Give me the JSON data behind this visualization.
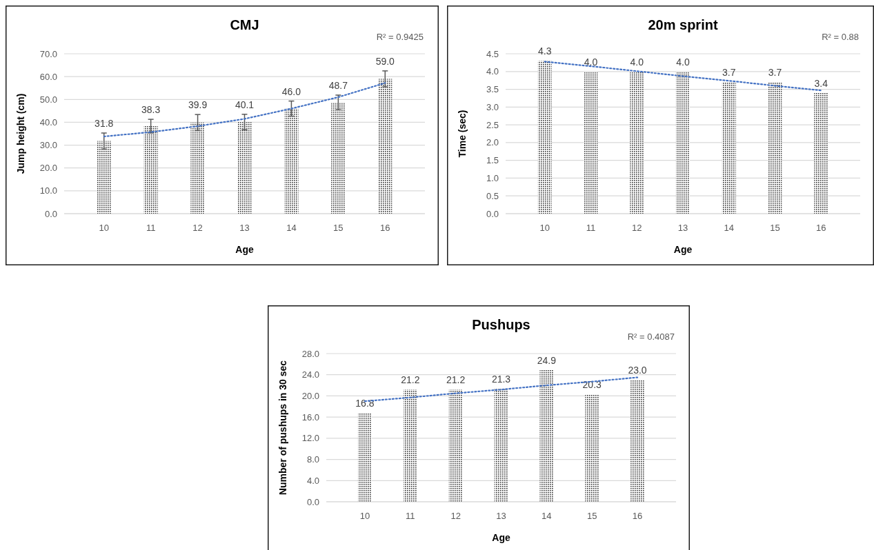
{
  "chart_data": [
    {
      "type": "bar",
      "title": "CMJ",
      "xlabel": "Age",
      "ylabel": "Jump height (cm)",
      "annotations": [
        "R² = 0.9425"
      ],
      "categories": [
        "10",
        "11",
        "12",
        "13",
        "14",
        "15",
        "16"
      ],
      "ylim": [
        0,
        70
      ],
      "yticks": [
        {
          "value": 0,
          "label": "0.0"
        },
        {
          "value": 10,
          "label": "10.0"
        },
        {
          "value": 20,
          "label": "20.0"
        },
        {
          "value": 30,
          "label": "30.0"
        },
        {
          "value": 40,
          "label": "40.0"
        },
        {
          "value": 50,
          "label": "50.0"
        },
        {
          "value": 60,
          "label": "60.0"
        },
        {
          "value": 70,
          "label": "70.0"
        }
      ],
      "grid": "y",
      "series": [
        {
          "color": "#3a3a3a",
          "values": [
            31.8,
            38.3,
            39.9,
            40.1,
            46.0,
            48.7,
            59.0
          ],
          "value_labels": [
            "31.8",
            "38.3",
            "39.9",
            "40.1",
            "46.0",
            "48.7",
            "59.0"
          ],
          "errors": [
            3.5,
            3.0,
            3.5,
            3.4,
            3.3,
            3.2,
            3.5
          ]
        },
        {
          "type": "line",
          "color": "#4472c4",
          "line_style": "dotted",
          "values": [
            33.8,
            35.7,
            38.3,
            41.5,
            46.0,
            51.0,
            57.2
          ]
        }
      ]
    },
    {
      "type": "bar",
      "title": "20m sprint",
      "xlabel": "Age",
      "ylabel": "Time (sec)",
      "annotations": [
        "R² = 0.88"
      ],
      "categories": [
        "10",
        "11",
        "12",
        "13",
        "14",
        "15",
        "16"
      ],
      "ylim": [
        0,
        4.5
      ],
      "yticks": [
        {
          "value": 0,
          "label": "0.0"
        },
        0.5,
        {
          "value": 1,
          "label": "1.0"
        },
        1.5,
        {
          "value": 2,
          "label": "2.0"
        },
        2.5,
        {
          "value": 3,
          "label": "3.0"
        },
        3.5,
        {
          "value": 4,
          "label": "4.0"
        },
        4.5
      ],
      "grid": "y",
      "series": [
        {
          "color": "#3a3a3a",
          "values": [
            4.3,
            4.0,
            4.0,
            4.0,
            3.7,
            3.7,
            3.4
          ],
          "value_labels": [
            "4.3",
            "4.0",
            "4.0",
            "4.0",
            "3.7",
            "3.7",
            "3.4"
          ]
        },
        {
          "type": "line",
          "color": "#4472c4",
          "line_style": "dotted",
          "values": [
            4.28,
            4.15,
            4.01,
            3.87,
            3.74,
            3.6,
            3.47
          ]
        }
      ]
    },
    {
      "type": "bar",
      "title": "Pushups",
      "xlabel": "Age",
      "ylabel": "Number of pushups in 30 sec",
      "annotations": [
        "R² = 0.4087"
      ],
      "categories": [
        "10",
        "11",
        "12",
        "13",
        "14",
        "15",
        "16"
      ],
      "ylim": [
        0,
        28
      ],
      "yticks": [
        {
          "value": 0,
          "label": "0.0"
        },
        {
          "value": 4,
          "label": "4.0"
        },
        {
          "value": 8,
          "label": "8.0"
        },
        {
          "value": 12,
          "label": "12.0"
        },
        {
          "value": 16,
          "label": "16.0"
        },
        {
          "value": 20,
          "label": "20.0"
        },
        {
          "value": 24,
          "label": "24.0"
        },
        {
          "value": 28,
          "label": "28.0"
        }
      ],
      "grid": "y",
      "series": [
        {
          "color": "#3a3a3a",
          "values": [
            16.8,
            21.2,
            21.2,
            21.3,
            24.9,
            20.3,
            23.0
          ],
          "value_labels": [
            "16.8",
            "21.2",
            "21.2",
            "21.3",
            "24.9",
            "20.3",
            "23.0"
          ]
        },
        {
          "type": "line",
          "color": "#4472c4",
          "line_style": "dotted",
          "values": [
            19.0,
            19.7,
            20.5,
            21.2,
            22.0,
            22.7,
            23.5
          ]
        }
      ]
    }
  ]
}
